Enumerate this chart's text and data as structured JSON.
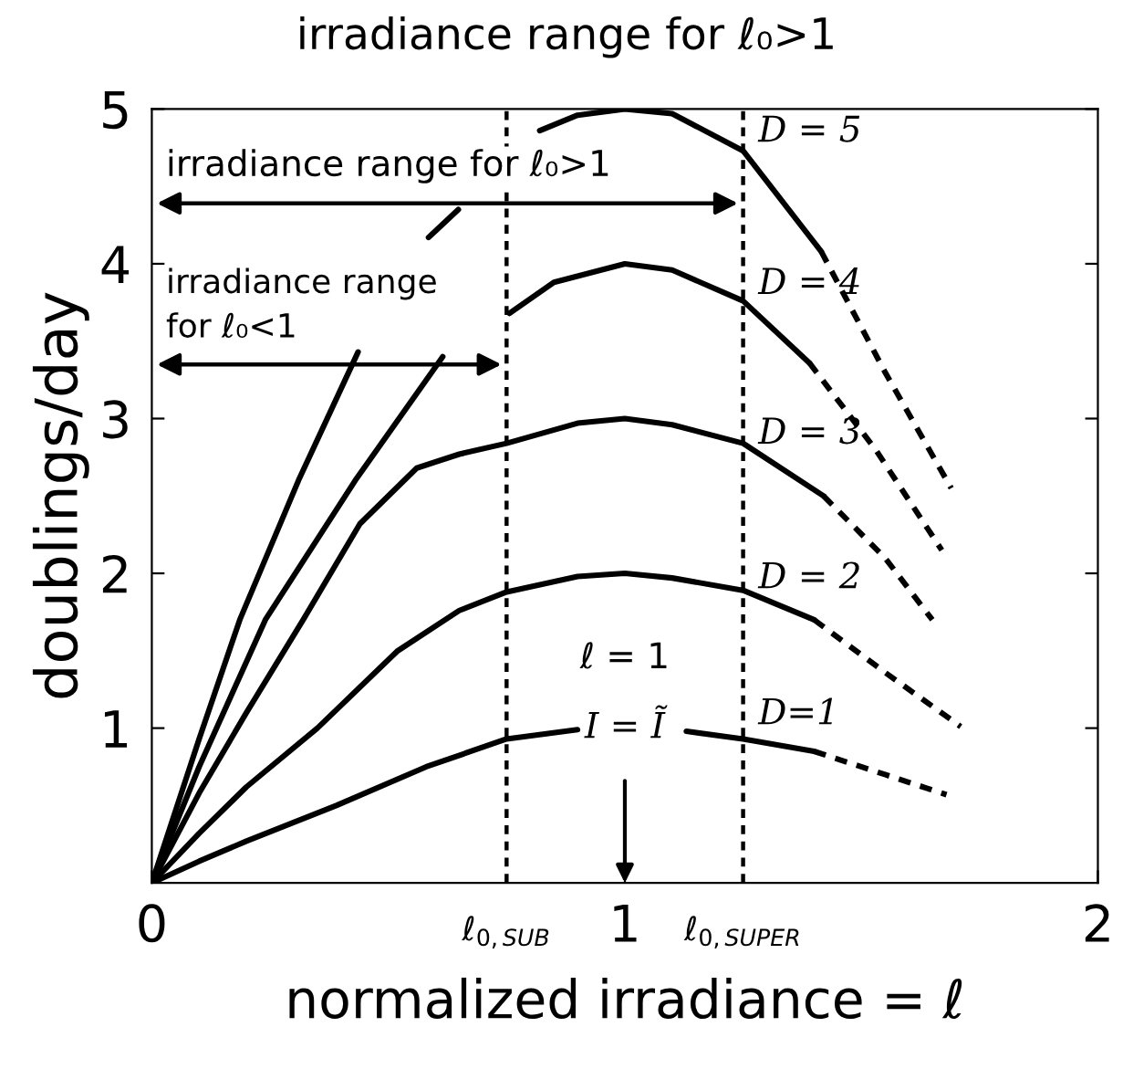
{
  "chart_data": {
    "type": "line",
    "title": "irradiance range for ℓ₀>1",
    "xlabel": "normalized irradiance = ℓ",
    "ylabel": "doublings/day",
    "xlim": [
      0,
      2
    ],
    "xticks": [
      0,
      1,
      2
    ],
    "ylim": [
      0,
      5
    ],
    "yticks": [
      1,
      2,
      3,
      4,
      5
    ],
    "series": [
      {
        "color": "#000000",
        "line_style": "solid",
        "x": [
          0,
          0.1,
          0.2,
          0.39,
          0.58,
          0.75,
          0.9,
          1.0,
          1.13,
          1.25,
          1.4
        ],
        "values": [
          0,
          0.14,
          0.27,
          0.5,
          0.75,
          0.93,
          0.99,
          null,
          0.98,
          0.93,
          0.85
        ]
      },
      {
        "color": "#000000",
        "line_style": "dashed",
        "x": [
          1.4,
          1.55,
          1.68
        ],
        "values": [
          0.85,
          0.7,
          0.57
        ]
      },
      {
        "color": "#000000",
        "line_style": "solid",
        "x": [
          0,
          0.1,
          0.2,
          0.35,
          0.52,
          0.65,
          0.75,
          0.9,
          1.0,
          1.1,
          1.25,
          1.4
        ],
        "values": [
          0,
          0.32,
          0.62,
          1.0,
          1.5,
          1.76,
          1.88,
          1.98,
          2.0,
          1.97,
          1.89,
          1.7
        ]
      },
      {
        "color": "#000000",
        "line_style": "dashed",
        "x": [
          1.4,
          1.55,
          1.71
        ],
        "values": [
          1.7,
          1.36,
          1.01
        ]
      },
      {
        "color": "#000000",
        "line_style": "solid",
        "x": [
          0,
          0.1,
          0.2,
          0.32,
          0.44,
          0.56,
          0.65,
          0.75,
          0.9,
          1.0,
          1.1,
          1.25,
          1.42
        ],
        "values": [
          0,
          0.58,
          1.1,
          1.7,
          2.32,
          2.68,
          2.77,
          2.84,
          2.97,
          3.0,
          2.96,
          2.84,
          2.5
        ]
      },
      {
        "color": "#000000",
        "line_style": "dashed",
        "x": [
          1.42,
          1.55,
          1.65
        ],
        "values": [
          2.5,
          2.1,
          1.7
        ]
      },
      {
        "color": "#000000",
        "line_style": "solid",
        "x": [
          0,
          0.1,
          0.24,
          0.43,
          0.615,
          0.7,
          0.756,
          0.85,
          1.0,
          1.1,
          1.25,
          1.39
        ],
        "values": [
          0,
          0.75,
          1.7,
          2.6,
          3.4,
          null,
          3.68,
          3.88,
          4.0,
          3.96,
          3.76,
          3.36
        ]
      },
      {
        "color": "#000000",
        "line_style": "dashed",
        "x": [
          1.39,
          1.53,
          1.67
        ],
        "values": [
          3.36,
          2.8,
          2.15
        ]
      },
      {
        "color": "#000000",
        "line_style": "solid",
        "x": [
          0,
          0.1,
          0.186,
          0.31,
          0.436,
          0.5,
          0.585,
          0.648,
          0.72,
          0.82,
          0.9,
          1.0,
          1.1,
          1.25,
          1.415
        ],
        "values": [
          0,
          0.93,
          1.7,
          2.6,
          3.43,
          null,
          4.17,
          4.35,
          null,
          4.86,
          4.96,
          5.0,
          4.97,
          4.73,
          4.08
        ]
      },
      {
        "color": "#000000",
        "line_style": "dashed",
        "x": [
          1.415,
          1.55,
          1.69
        ],
        "values": [
          4.08,
          3.3,
          2.55
        ]
      }
    ],
    "ref_lines": [
      {
        "axis": "x",
        "value": 0.75,
        "label": "ℓ$_{0,SUB}$",
        "line_style": "dashed",
        "color": "#000000"
      },
      {
        "axis": "x",
        "value": 1.25,
        "label": "ℓ$_{0,SUPER}$",
        "line_style": "dashed",
        "color": "#000000"
      }
    ],
    "annotations": [
      "irradiance range for ℓ₀>1",
      "irradiance range\nfor ℓ₀<1",
      "ℓ = 1",
      "I = Ĩ",
      "D = 5",
      "D = 4",
      "D = 3",
      "D = 2",
      "D=1"
    ]
  }
}
